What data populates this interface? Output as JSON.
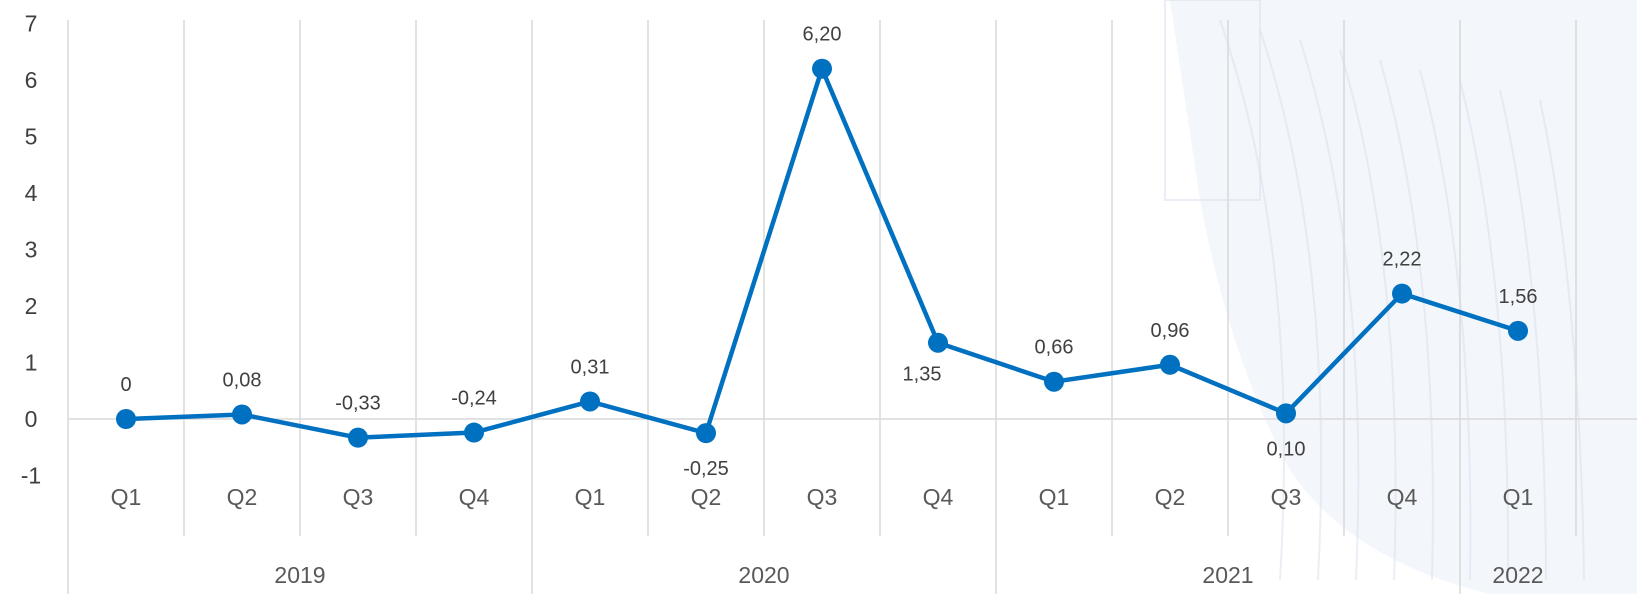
{
  "chart_data": {
    "type": "line",
    "title": "",
    "xlabel": "",
    "ylabel": "",
    "ylim": [
      -1,
      7
    ],
    "yticks": [
      "-1",
      "0",
      "1",
      "2",
      "3",
      "4",
      "5",
      "6",
      "7"
    ],
    "grid": true,
    "legend": "none",
    "categories": [
      "Q1",
      "Q2",
      "Q3",
      "Q4",
      "Q1",
      "Q2",
      "Q3",
      "Q4",
      "Q1",
      "Q2",
      "Q3",
      "Q4",
      "Q1"
    ],
    "years": [
      {
        "label": "2019",
        "quarters": 4
      },
      {
        "label": "2020",
        "quarters": 4
      },
      {
        "label": "2021",
        "quarters": 4
      },
      {
        "label": "2022",
        "quarters": 1
      }
    ],
    "series": [
      {
        "values": [
          0,
          0.08,
          -0.33,
          -0.24,
          0.31,
          -0.25,
          6.2,
          1.35,
          0.66,
          0.96,
          0.1,
          2.22,
          1.56
        ],
        "labels": [
          "0",
          "0,08",
          "-0,33",
          "-0,24",
          "0,31",
          "-0,25",
          "6,20",
          "1,35",
          "0,66",
          "0,96",
          "0,10",
          "2,22",
          "1,56"
        ],
        "label_side": [
          "above",
          "above",
          "above",
          "above",
          "above",
          "below",
          "above",
          "below-left",
          "above",
          "above",
          "below",
          "above",
          "above"
        ],
        "color": "#0070C0"
      }
    ],
    "colors": {
      "line": "#0070C0",
      "grid": "#D9D9D9",
      "axis": "#D9D9D9",
      "watermark": "#DCE3EE"
    }
  }
}
